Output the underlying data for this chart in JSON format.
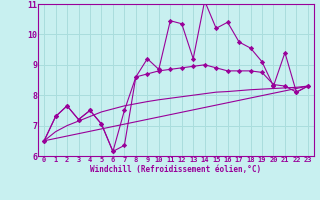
{
  "xlabel": "Windchill (Refroidissement éolien,°C)",
  "background_color": "#c8f0f0",
  "line_color": "#990099",
  "grid_color": "#aadddd",
  "xlim": [
    -0.5,
    23.5
  ],
  "ylim": [
    6,
    11
  ],
  "xticks": [
    0,
    1,
    2,
    3,
    4,
    5,
    6,
    7,
    8,
    9,
    10,
    11,
    12,
    13,
    14,
    15,
    16,
    17,
    18,
    19,
    20,
    21,
    22,
    23
  ],
  "yticks": [
    6,
    7,
    8,
    9,
    10,
    11
  ],
  "series": [
    {
      "x": [
        0,
        1,
        2,
        3,
        4,
        5,
        6,
        7,
        8,
        9,
        10,
        11,
        12,
        13,
        14,
        15,
        16,
        17,
        18,
        19,
        20,
        21,
        22,
        23
      ],
      "y": [
        6.5,
        7.3,
        7.65,
        7.2,
        7.5,
        7.05,
        6.15,
        6.35,
        8.6,
        9.2,
        8.85,
        10.45,
        10.35,
        9.2,
        11.1,
        10.2,
        10.4,
        9.75,
        9.55,
        9.1,
        8.3,
        9.4,
        8.1,
        8.3
      ],
      "marker": true
    },
    {
      "x": [
        0,
        1,
        2,
        3,
        4,
        5,
        6,
        7,
        8,
        9,
        10,
        11,
        12,
        13,
        14,
        15,
        16,
        17,
        18,
        19,
        20,
        21,
        22,
        23
      ],
      "y": [
        6.5,
        7.3,
        7.65,
        7.2,
        7.5,
        7.05,
        6.15,
        7.5,
        8.6,
        8.7,
        8.8,
        8.85,
        8.9,
        8.95,
        9.0,
        8.9,
        8.8,
        8.8,
        8.8,
        8.75,
        8.35,
        8.3,
        8.1,
        8.3
      ],
      "marker": true
    },
    {
      "x": [
        0,
        23
      ],
      "y": [
        6.5,
        8.3
      ],
      "marker": false
    },
    {
      "x": [
        0,
        1,
        2,
        3,
        4,
        5,
        6,
        7,
        8,
        9,
        10,
        11,
        12,
        13,
        14,
        15,
        16,
        17,
        18,
        19,
        20,
        21,
        22,
        23
      ],
      "y": [
        6.5,
        6.8,
        7.0,
        7.15,
        7.3,
        7.45,
        7.55,
        7.65,
        7.72,
        7.79,
        7.85,
        7.9,
        7.95,
        8.0,
        8.05,
        8.1,
        8.12,
        8.15,
        8.18,
        8.2,
        8.22,
        8.24,
        8.26,
        8.3
      ],
      "marker": false
    }
  ]
}
